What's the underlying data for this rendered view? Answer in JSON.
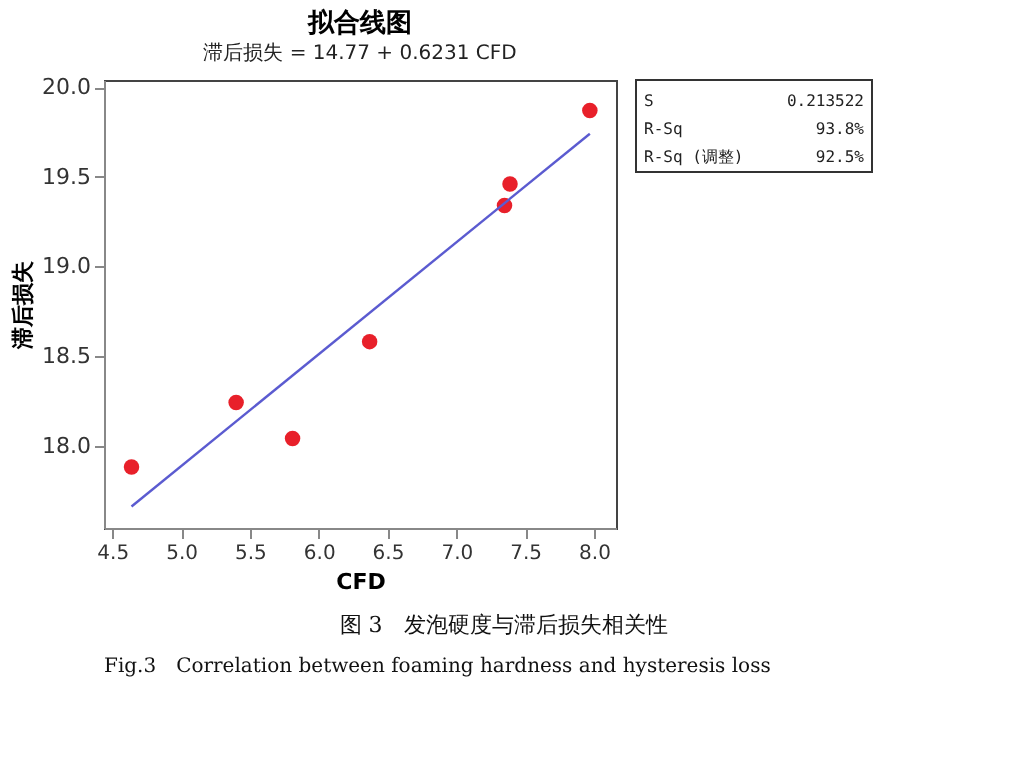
{
  "chart_data": {
    "type": "scatter",
    "title": "拟合线图",
    "subtitle": "滞后损失 =  14.77 + 0.6231 CFD",
    "xlabel": "CFD",
    "ylabel": "滞后损失",
    "series": [
      {
        "type": "scatter",
        "color": "#e8202a",
        "marker": "circle",
        "x": [
          4.64,
          5.4,
          5.81,
          6.37,
          7.35,
          7.39,
          7.97
        ],
        "values": [
          17.88,
          18.24,
          18.04,
          18.58,
          19.34,
          19.46,
          19.87
        ]
      },
      {
        "type": "line",
        "color": "#5b5bd0",
        "line_style": "solid",
        "x": [
          4.64,
          7.97
        ],
        "values": [
          17.66,
          19.74
        ]
      }
    ],
    "xlim": [
      4.44,
      8.16
    ],
    "ylim": [
      17.54,
      20.04
    ],
    "xticks": [
      {
        "value": 4.5,
        "label": "4.5"
      },
      {
        "value": 5,
        "label": "5.0"
      },
      {
        "value": 5.5,
        "label": "5.5"
      },
      {
        "value": 6,
        "label": "6.0"
      },
      {
        "value": 6.5,
        "label": "6.5"
      },
      {
        "value": 7,
        "label": "7.0"
      },
      {
        "value": 7.5,
        "label": "7.5"
      },
      {
        "value": 8,
        "label": "8.0"
      }
    ],
    "yticks": [
      {
        "value": 18,
        "label": "18.0"
      },
      {
        "value": 18.5,
        "label": "18.5"
      },
      {
        "value": 19,
        "label": "19.0"
      },
      {
        "value": 19.5,
        "label": "19.5"
      },
      {
        "value": 20,
        "label": "20.0"
      }
    ],
    "grid": false,
    "legend": false,
    "annotations": [
      "S",
      "0.213522",
      "R-Sq",
      "93.8%",
      "R-Sq (调整)",
      "92.5%",
      "图 3　发泡硬度与滞后损失相关性",
      "Fig.3　Correlation between foaming hardness and hysteresis loss"
    ]
  }
}
